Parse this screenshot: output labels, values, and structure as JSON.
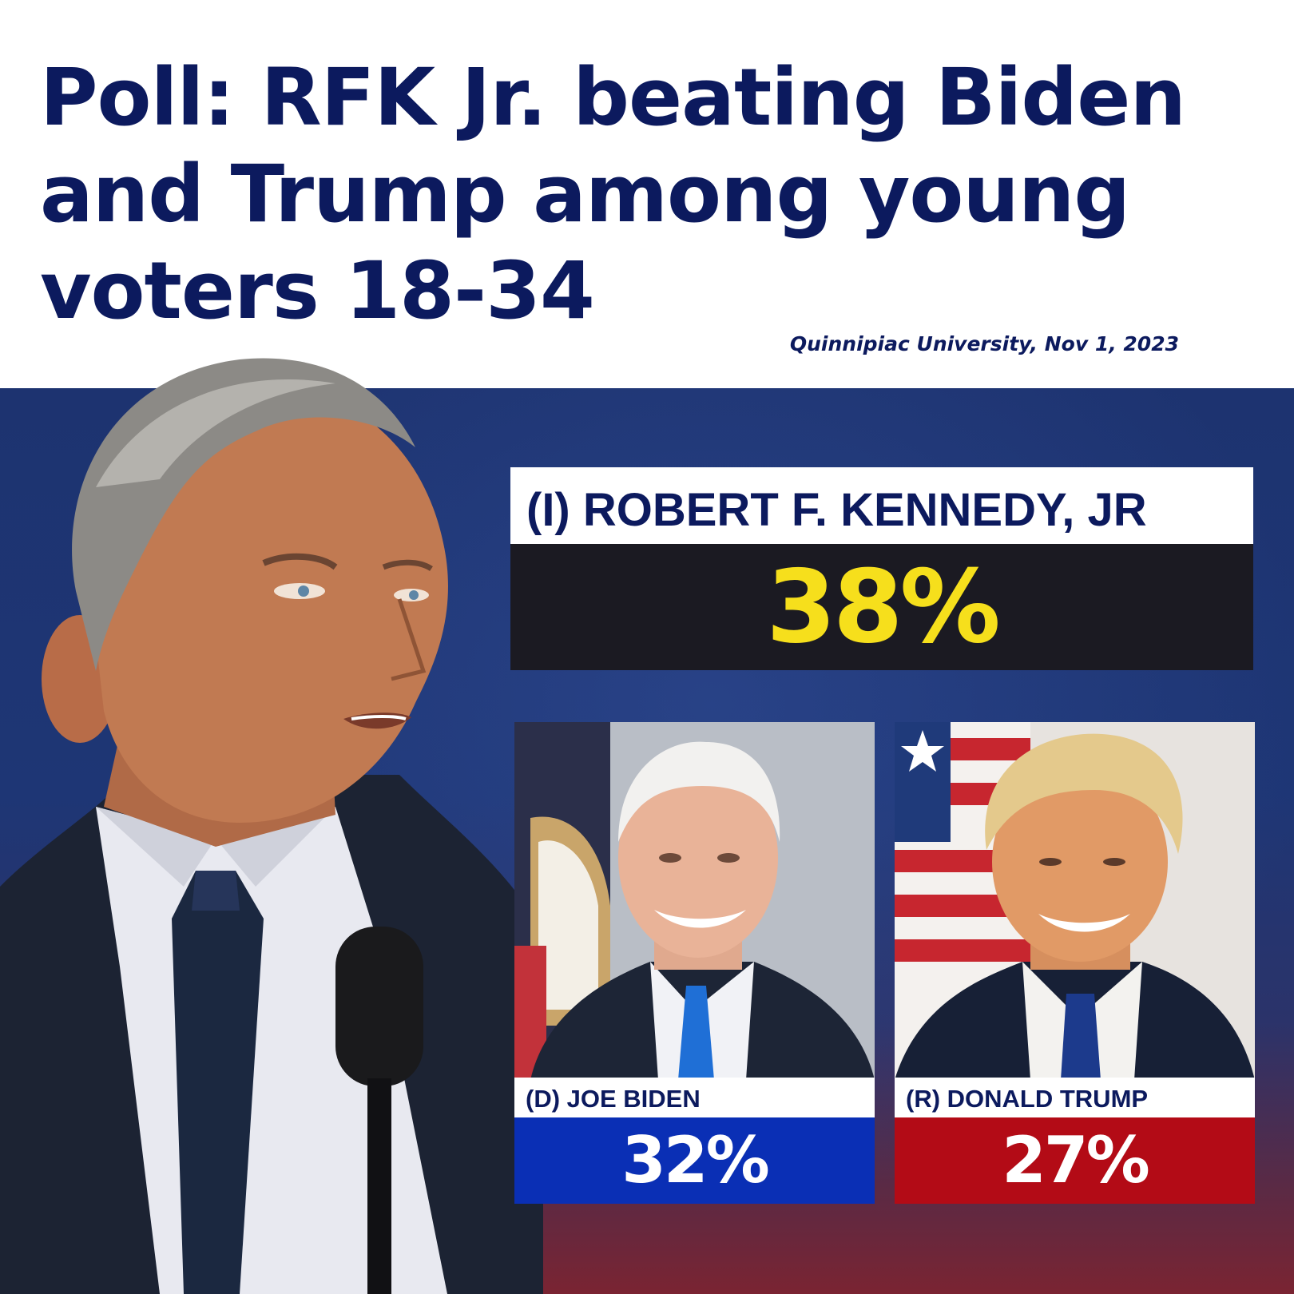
{
  "headline": "Poll: RFK Jr. beating Biden and Trump among young voters 18-34",
  "source": "Quinnipiac University, Nov 1, 2023",
  "candidates": [
    {
      "name": "(I) ROBERT F. KENNEDY, JR",
      "percent": "38%"
    },
    {
      "name": "(D) JOE BIDEN",
      "percent": "32%"
    },
    {
      "name": "(R) DONALD TRUMP",
      "percent": "27%"
    }
  ],
  "colors": {
    "headline": "#0c1a5e",
    "background_top": "#1e3675",
    "background_bottom": "#7a2432",
    "rfk_percent_text": "#f6df1c",
    "rfk_percent_bg": "#1b1a22",
    "democrat": "#0a2fb5",
    "republican": "#b30b16"
  }
}
